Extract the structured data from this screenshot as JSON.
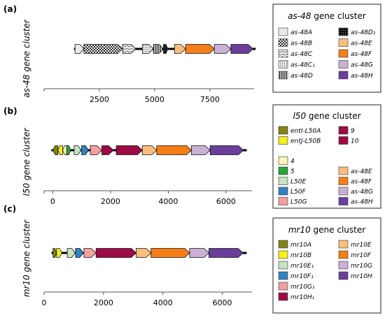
{
  "colors": {
    "as48A": "#e9e9e9",
    "as48E": "#f8be7e",
    "as48F": "#f57f16",
    "as48G": "#c9b0d4",
    "as48H": "#6a3e9a",
    "entI": "#828216",
    "entJ": "#f7ef1c",
    "g4": "#fbf7ba",
    "g5": "#2aa533",
    "L50E": "#c4e4c2",
    "L50F": "#3183c2",
    "L50G": "#f3a0a0",
    "g9": "#9d0a45",
    "g10": "#9d0a45",
    "mr10A": "#828216",
    "mr10B": "#f7ef1c",
    "mr10E1": "#c4e4c2",
    "mr10F1": "#3183c2",
    "mr10G1": "#f3a0a0",
    "mr10H1": "#9d0a45"
  },
  "panels": [
    {
      "label": "(a)",
      "ylabel": "as-48 gene cluster",
      "axis": {
        "min": 0,
        "max": 9500,
        "ticks": [
          2500,
          5000,
          7500
        ]
      },
      "tick_labels": [
        "2500",
        "5000",
        "7500"
      ],
      "genes": [
        {
          "name": "as-48A",
          "start": 1400,
          "end": 1800,
          "fill": "as48A",
          "pattern": "none"
        },
        {
          "name": "as-48B",
          "start": 1800,
          "end": 3550,
          "fill": "as48A",
          "pattern": "checker"
        },
        {
          "name": "as-48C",
          "start": 3550,
          "end": 4150,
          "fill": "as48A",
          "pattern": "wave"
        },
        {
          "name": "as-48C1",
          "start": 4450,
          "end": 4950,
          "fill": "as48A",
          "pattern": "dots"
        },
        {
          "name": "as-48D",
          "start": 4950,
          "end": 5400,
          "fill": "as48A",
          "pattern": "vstripes"
        },
        {
          "name": "as-48D1",
          "start": 5400,
          "end": 5600,
          "fill": "as48A",
          "pattern": "dense"
        },
        {
          "name": "as-48E",
          "start": 5900,
          "end": 6400,
          "fill": "as48E",
          "pattern": "none"
        },
        {
          "name": "as-48F",
          "start": 6400,
          "end": 7700,
          "fill": "as48F",
          "pattern": "none"
        },
        {
          "name": "as-48G",
          "start": 7700,
          "end": 8450,
          "fill": "as48G",
          "pattern": "none"
        },
        {
          "name": "as-48H",
          "start": 8450,
          "end": 9450,
          "fill": "as48H",
          "pattern": "none"
        }
      ]
    },
    {
      "label": "(b)",
      "ylabel": "l50 gene cluster",
      "axis": {
        "min": -300,
        "max": 6900,
        "ticks": [
          0,
          2000,
          4000,
          6000
        ]
      },
      "tick_labels": [
        "0",
        "2000",
        "4000",
        "6000"
      ],
      "genes": [
        {
          "name": "entI-L50A",
          "start": 0,
          "end": 180,
          "fill": "entI",
          "strand": -1
        },
        {
          "name": "entJ-L50B",
          "start": 180,
          "end": 340,
          "fill": "entJ",
          "strand": -1
        },
        {
          "name": "4",
          "start": 340,
          "end": 500,
          "fill": "g4",
          "strand": -1
        },
        {
          "name": "5",
          "start": 480,
          "end": 620,
          "fill": "g5",
          "strand": 1
        },
        {
          "name": "L50E",
          "start": 740,
          "end": 980,
          "fill": "L50E",
          "strand": 1
        },
        {
          "name": "L50F",
          "start": 1000,
          "end": 1240,
          "fill": "L50F",
          "strand": 1
        },
        {
          "name": "L50G",
          "start": 1300,
          "end": 1700,
          "fill": "L50G",
          "strand": 1
        },
        {
          "name": "9",
          "start": 1700,
          "end": 2100,
          "fill": "g9",
          "strand": 1
        },
        {
          "name": "10",
          "start": 2200,
          "end": 3100,
          "fill": "g10",
          "strand": 1
        },
        {
          "name": "as-48E",
          "start": 3100,
          "end": 3600,
          "fill": "as48E",
          "strand": 1
        },
        {
          "name": "as-48F",
          "start": 3600,
          "end": 4800,
          "fill": "as48F",
          "strand": 1
        },
        {
          "name": "as-48G",
          "start": 4800,
          "end": 5450,
          "fill": "as48G",
          "strand": 1
        },
        {
          "name": "as-48H",
          "start": 5450,
          "end": 6600,
          "fill": "as48H",
          "strand": 1
        }
      ]
    },
    {
      "label": "(c)",
      "ylabel": "mr10 gene cluster",
      "axis": {
        "min": 0,
        "max": 7000,
        "ticks": [
          0,
          2000,
          4000,
          6000
        ]
      },
      "tick_labels": [
        "0",
        "2000",
        "4000",
        "6000"
      ],
      "genes": [
        {
          "name": "mr10A",
          "start": 300,
          "end": 420,
          "fill": "mr10A",
          "strand": 1
        },
        {
          "name": "mr10B",
          "start": 420,
          "end": 600,
          "fill": "mr10B",
          "strand": 1
        },
        {
          "name": "mr10E1",
          "start": 780,
          "end": 1050,
          "fill": "mr10E1",
          "strand": 1
        },
        {
          "name": "mr10F1",
          "start": 1060,
          "end": 1320,
          "fill": "mr10F1",
          "strand": 1
        },
        {
          "name": "mr10G1",
          "start": 1340,
          "end": 1750,
          "fill": "mr10G1",
          "strand": 1
        },
        {
          "name": "mr10H1",
          "start": 1750,
          "end": 3100,
          "fill": "mr10H1",
          "strand": 1
        },
        {
          "name": "mr10E",
          "start": 3100,
          "end": 3600,
          "fill": "as48E",
          "strand": 1
        },
        {
          "name": "mr10F",
          "start": 3600,
          "end": 4900,
          "fill": "as48F",
          "strand": 1
        },
        {
          "name": "mr10G",
          "start": 4900,
          "end": 5550,
          "fill": "as48G",
          "strand": 1
        },
        {
          "name": "mr10H",
          "start": 5550,
          "end": 6700,
          "fill": "as48H",
          "strand": 1
        }
      ]
    }
  ],
  "legends": [
    {
      "title_italic": "as-48",
      "title_rest": " gene cluster",
      "left": [
        {
          "label": "as-48A",
          "fill": "as48A",
          "pattern": "none"
        },
        {
          "label": "as-48B",
          "fill": "as48A",
          "pattern": "checker"
        },
        {
          "label": "as-48C",
          "fill": "as48A",
          "pattern": "wave"
        },
        {
          "label": "as-48C₁",
          "fill": "as48A",
          "pattern": "dots"
        },
        {
          "label": "as-48D",
          "fill": "as48A",
          "pattern": "vstripes"
        }
      ],
      "right": [
        {
          "label": "as-48D₁",
          "fill": "as48A",
          "pattern": "dense"
        },
        {
          "label": "as-48E",
          "fill": "as48E",
          "pattern": "none"
        },
        {
          "label": "as-48F",
          "fill": "as48F",
          "pattern": "none"
        },
        {
          "label": "as-48G",
          "fill": "as48G",
          "pattern": "none"
        },
        {
          "label": "as-48H",
          "fill": "as48H",
          "pattern": "none"
        }
      ]
    },
    {
      "title_italic": "l50",
      "title_rest": " gene cluster",
      "left": [
        {
          "label": "entI-L50A",
          "fill": "entI"
        },
        {
          "label": "entJ-L50B",
          "fill": "entJ"
        },
        {
          "label": "",
          "fill": ""
        },
        {
          "label": "4",
          "fill": "g4"
        },
        {
          "label": "5",
          "fill": "g5"
        },
        {
          "label": "L50E",
          "fill": "L50E"
        },
        {
          "label": "L50F",
          "fill": "L50F"
        },
        {
          "label": "L50G",
          "fill": "L50G"
        }
      ],
      "right": [
        {
          "label": "9",
          "fill": "g9"
        },
        {
          "label": "10",
          "fill": "g10"
        },
        {
          "label": "",
          "fill": ""
        },
        {
          "label": "",
          "fill": ""
        },
        {
          "label": "as-48E",
          "fill": "as48E"
        },
        {
          "label": "as-48F",
          "fill": "as48F"
        },
        {
          "label": "as-48G",
          "fill": "as48G"
        },
        {
          "label": "as-48H",
          "fill": "as48H"
        }
      ]
    },
    {
      "title_italic": "mr10",
      "title_rest": " gene cluster",
      "left": [
        {
          "label": "mr10A",
          "fill": "mr10A"
        },
        {
          "label": "mr10B",
          "fill": "mr10B"
        },
        {
          "label": "mr10E₁",
          "fill": "mr10E1"
        },
        {
          "label": "mr10F₁",
          "fill": "mr10F1"
        },
        {
          "label": "mr10G₁",
          "fill": "mr10G1"
        },
        {
          "label": "mr10H₁",
          "fill": "mr10H1"
        }
      ],
      "right": [
        {
          "label": "mr10E",
          "fill": "as48E"
        },
        {
          "label": "mr10F",
          "fill": "as48F"
        },
        {
          "label": "mr10G",
          "fill": "as48G"
        },
        {
          "label": "mr10H",
          "fill": "as48H"
        }
      ]
    }
  ]
}
